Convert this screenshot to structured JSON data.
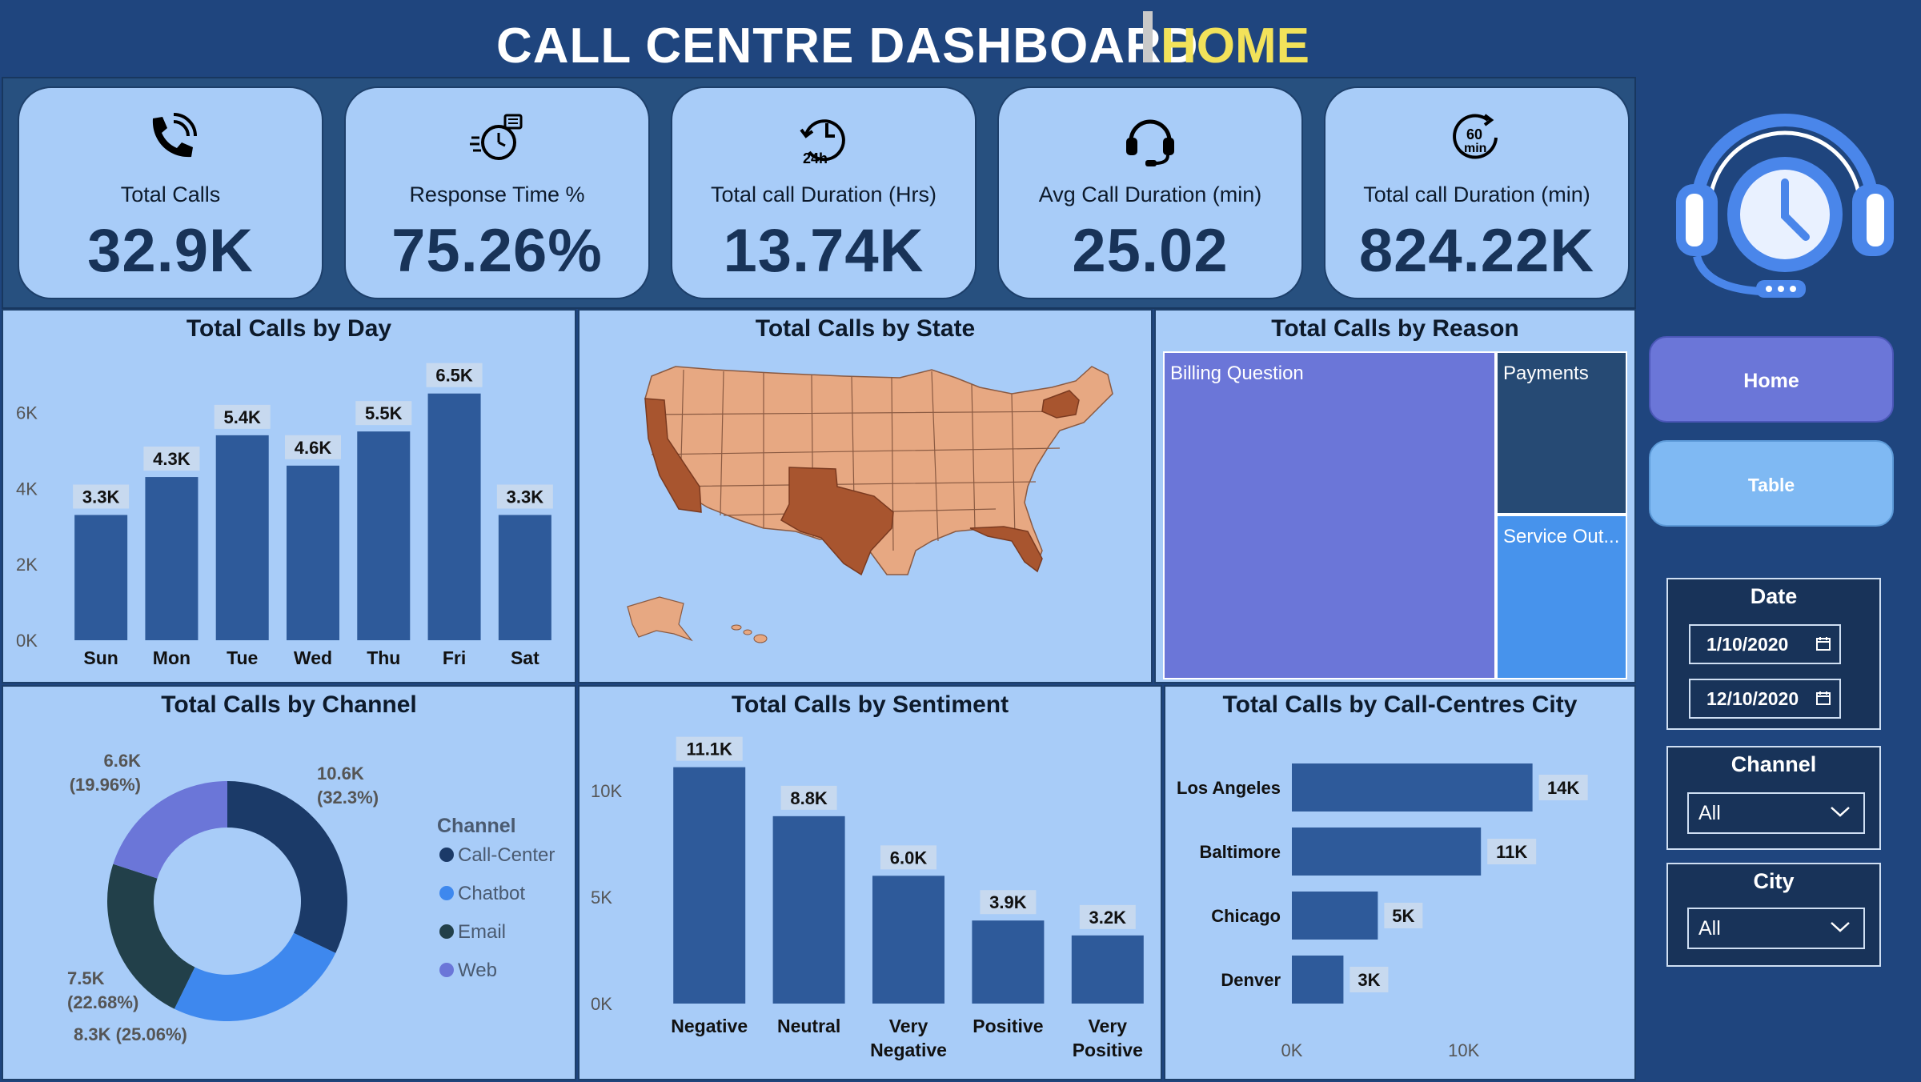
{
  "header": {
    "title": "CALL CENTRE DASHBOARD",
    "page": "HOME"
  },
  "kpis": [
    {
      "label": "Total Calls",
      "value": "32.9K",
      "icon": "phone-ringing-icon"
    },
    {
      "label": "Response Time %",
      "value": "75.26%",
      "icon": "stopwatch-icon"
    },
    {
      "label": "Total call Duration (Hrs)",
      "value": "13.74K",
      "icon": "clock-24h-icon"
    },
    {
      "label": "Avg Call Duration (min)",
      "value": "25.02",
      "icon": "headset-icon"
    },
    {
      "label": "Total call Duration (min)",
      "value": "824.22K",
      "icon": "timer-60min-icon"
    }
  ],
  "nav": {
    "home": "Home",
    "table": "Table"
  },
  "slicers": {
    "date": {
      "title": "Date",
      "start": "1/10/2020",
      "end": "12/10/2020"
    },
    "channel": {
      "title": "Channel",
      "value": "All"
    },
    "city": {
      "title": "City",
      "value": "All"
    }
  },
  "colors": {
    "bar": "#2e5a9a",
    "accent_yellow": "#f2e25a",
    "panel": "#a8ccf8",
    "background": "#1f457e"
  },
  "panels": {
    "day": "Total Calls by Day",
    "state": "Total Calls by State",
    "reason": "Total Calls by Reason",
    "channel": "Total Calls by Channel",
    "sentiment": "Total Calls by Sentiment",
    "city": "Total Calls by Call-Centres City"
  },
  "chart_data": [
    {
      "id": "day",
      "type": "bar",
      "title": "Total Calls by Day",
      "categories": [
        "Sun",
        "Mon",
        "Tue",
        "Wed",
        "Thu",
        "Fri",
        "Sat"
      ],
      "values": [
        3.3,
        4.3,
        5.4,
        4.6,
        5.5,
        6.5,
        3.3
      ],
      "data_labels": [
        "3.3K",
        "4.3K",
        "5.4K",
        "4.6K",
        "5.5K",
        "6.5K",
        "3.3K"
      ],
      "yticks": [
        "0K",
        "2K",
        "4K",
        "6K"
      ],
      "ylim": [
        0,
        7
      ]
    },
    {
      "id": "state",
      "type": "map",
      "title": "Total Calls by State",
      "highlighted": [
        "California",
        "Texas",
        "Florida",
        "New York"
      ]
    },
    {
      "id": "reason",
      "type": "treemap",
      "title": "Total Calls by Reason",
      "items": [
        {
          "name": "Billing Question",
          "color": "#6b76d8"
        },
        {
          "name": "Payments",
          "color": "#264a74"
        },
        {
          "name": "Service Out...",
          "color": "#4793ec"
        }
      ]
    },
    {
      "id": "channel",
      "type": "pie",
      "title": "Total Calls by Channel",
      "legend_title": "Channel",
      "legend_position": "right",
      "slices": [
        {
          "name": "Call-Center",
          "value": 10.6,
          "label": "10.6K",
          "pct": "(32.3%)",
          "color": "#1b3a68"
        },
        {
          "name": "Chatbot",
          "value": 8.3,
          "label": "8.3K (25.06%)",
          "pct": "",
          "color": "#3e88ee"
        },
        {
          "name": "Email",
          "value": 7.5,
          "label": "7.5K",
          "pct": "(22.68%)",
          "color": "#22404a"
        },
        {
          "name": "Web",
          "value": 6.6,
          "label": "6.6K",
          "pct": "(19.96%)",
          "color": "#6b76d8"
        }
      ]
    },
    {
      "id": "sentiment",
      "type": "bar",
      "title": "Total Calls by Sentiment",
      "categories": [
        "Negative",
        "Neutral",
        "Very Negative",
        "Positive",
        "Very Positive"
      ],
      "values": [
        11.1,
        8.8,
        6.0,
        3.9,
        3.2
      ],
      "data_labels": [
        "11.1K",
        "8.8K",
        "6.0K",
        "3.9K",
        "3.2K"
      ],
      "yticks": [
        "0K",
        "5K",
        "10K"
      ],
      "ylim": [
        0,
        11.5
      ]
    },
    {
      "id": "city",
      "type": "bar",
      "orientation": "horizontal",
      "title": "Total Calls by Call-Centres City",
      "categories": [
        "Los Angeles",
        "Baltimore",
        "Chicago",
        "Denver"
      ],
      "values": [
        14,
        11,
        5,
        3
      ],
      "data_labels": [
        "14K",
        "11K",
        "5K",
        "3K"
      ],
      "xticks": [
        "0K",
        "10K"
      ],
      "xlim": [
        0,
        19
      ]
    }
  ]
}
